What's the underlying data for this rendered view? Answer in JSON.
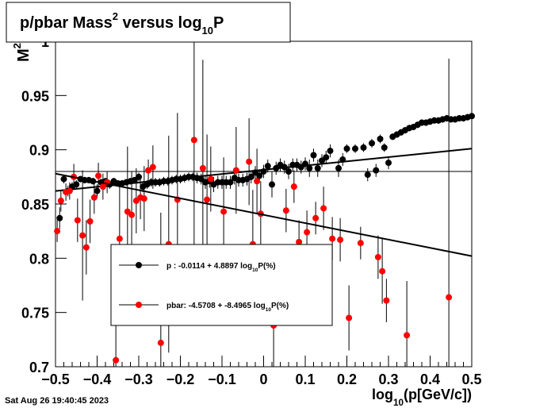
{
  "chart_data": {
    "type": "scatter",
    "title_parts": [
      "p/pbar Mass",
      "2",
      " versus log",
      "10",
      "P"
    ],
    "x_label_parts": [
      "log",
      "10",
      "(p[GeV/c])"
    ],
    "y_label_parts": [
      "M",
      "2"
    ],
    "footer": "Sat Aug 26 19:40:45 2023",
    "xlim": [
      -0.5,
      0.5
    ],
    "ylim": [
      0.7,
      1.0
    ],
    "xticks": [
      {
        "value": -0.5,
        "label": "−0.5"
      },
      {
        "value": -0.4,
        "label": "−0.4"
      },
      {
        "value": -0.3,
        "label": "−0.3"
      },
      {
        "value": -0.2,
        "label": "−0.2"
      },
      {
        "value": -0.1,
        "label": "−0.1"
      },
      0,
      0.1,
      0.2,
      0.3,
      0.4,
      0.5
    ],
    "yticks": [
      0.7,
      0.75,
      0.8,
      0.85,
      0.9,
      0.95,
      1
    ],
    "reference_line": 0.88,
    "series": [
      {
        "name_parts": [
          "p  : -0.0114 + 4.8897 log",
          "10",
          "P(%)"
        ],
        "color": "#000000",
        "fit": {
          "x": [
            -0.5,
            0.5
          ],
          "y": [
            0.862,
            0.901
          ]
        },
        "x": [
          -0.49,
          -0.48,
          -0.47,
          -0.46,
          -0.45,
          -0.44,
          -0.43,
          -0.42,
          -0.41,
          -0.4,
          -0.39,
          -0.38,
          -0.37,
          -0.36,
          -0.35,
          -0.34,
          -0.33,
          -0.32,
          -0.31,
          -0.3,
          -0.29,
          -0.28,
          -0.27,
          -0.26,
          -0.25,
          -0.24,
          -0.23,
          -0.22,
          -0.21,
          -0.2,
          -0.19,
          -0.18,
          -0.17,
          -0.16,
          -0.15,
          -0.14,
          -0.13,
          -0.12,
          -0.11,
          -0.1,
          -0.09,
          -0.08,
          -0.07,
          -0.06,
          -0.05,
          -0.04,
          -0.03,
          -0.02,
          -0.01,
          0.0,
          0.01,
          0.02,
          0.03,
          0.04,
          0.05,
          0.06,
          0.07,
          0.08,
          0.09,
          0.1,
          0.11,
          0.12,
          0.13,
          0.14,
          0.15,
          0.16,
          0.18,
          0.19,
          0.2,
          0.22,
          0.24,
          0.25,
          0.26,
          0.27,
          0.28,
          0.29,
          0.3,
          0.31,
          0.32,
          0.33,
          0.34,
          0.35,
          0.36,
          0.37,
          0.38,
          0.39,
          0.4,
          0.41,
          0.42,
          0.43,
          0.44,
          0.45,
          0.46,
          0.47,
          0.48,
          0.49,
          0.5
        ],
        "values": [
          0.837,
          0.873,
          0.862,
          0.866,
          0.868,
          0.873,
          0.872,
          0.872,
          0.871,
          0.862,
          0.87,
          0.871,
          0.868,
          0.871,
          0.869,
          0.869,
          0.87,
          0.871,
          0.872,
          0.875,
          0.866,
          0.868,
          0.87,
          0.87,
          0.87,
          0.871,
          0.871,
          0.872,
          0.873,
          0.873,
          0.874,
          0.875,
          0.875,
          0.874,
          0.873,
          0.87,
          0.871,
          0.868,
          0.87,
          0.87,
          0.87,
          0.87,
          0.874,
          0.872,
          0.872,
          0.873,
          0.875,
          0.879,
          0.876,
          0.88,
          0.885,
          0.868,
          0.883,
          0.886,
          0.884,
          0.88,
          0.886,
          0.886,
          0.884,
          0.887,
          0.883,
          0.895,
          0.883,
          0.89,
          0.893,
          0.899,
          0.883,
          0.891,
          0.901,
          0.901,
          0.902,
          0.877,
          0.906,
          0.881,
          0.91,
          0.902,
          0.888,
          0.912,
          0.914,
          0.916,
          0.918,
          0.92,
          0.921,
          0.923,
          0.925,
          0.925,
          0.926,
          0.927,
          0.927,
          0.928,
          0.929,
          0.928,
          0.928,
          0.929,
          0.929,
          0.93,
          0.931
        ],
        "errors": [
          0.01,
          0.004,
          0.005,
          0.004,
          0.004,
          0.003,
          0.003,
          0.003,
          0.003,
          0.006,
          0.003,
          0.003,
          0.004,
          0.003,
          0.003,
          0.003,
          0.003,
          0.003,
          0.003,
          0.004,
          0.005,
          0.004,
          0.004,
          0.004,
          0.004,
          0.004,
          0.004,
          0.004,
          0.004,
          0.004,
          0.004,
          0.004,
          0.004,
          0.005,
          0.005,
          0.006,
          0.006,
          0.007,
          0.006,
          0.006,
          0.006,
          0.006,
          0.006,
          0.006,
          0.006,
          0.006,
          0.006,
          0.006,
          0.006,
          0.006,
          0.006,
          0.012,
          0.006,
          0.006,
          0.006,
          0.007,
          0.006,
          0.006,
          0.006,
          0.006,
          0.008,
          0.006,
          0.008,
          0.006,
          0.006,
          0.006,
          0.008,
          0.006,
          0.004,
          0.004,
          0.004,
          0.006,
          0.004,
          0.006,
          0.004,
          0.004,
          0.006,
          0.003,
          0.003,
          0.003,
          0.003,
          0.003,
          0.003,
          0.003,
          0.003,
          0.003,
          0.003,
          0.003,
          0.003,
          0.003,
          0.003,
          0.003,
          0.003,
          0.003,
          0.003,
          0.003,
          0.003
        ]
      },
      {
        "name_parts": [
          "pbar: -4.5708 + -8.4965 log",
          "10",
          "P(%)"
        ],
        "color": "#ff0000",
        "fit": {
          "x": [
            -0.5,
            0.5
          ],
          "y": [
            0.878,
            0.802
          ]
        },
        "x": [
          -0.496,
          -0.487,
          -0.475,
          -0.466,
          -0.456,
          -0.447,
          -0.435,
          -0.426,
          -0.417,
          -0.407,
          -0.397,
          -0.386,
          -0.376,
          -0.355,
          -0.346,
          -0.327,
          -0.317,
          -0.306,
          -0.296,
          -0.287,
          -0.277,
          -0.266,
          -0.247,
          -0.228,
          -0.207,
          -0.167,
          -0.146,
          -0.136,
          -0.127,
          -0.096,
          -0.066,
          -0.035,
          -0.026,
          -0.016,
          -0.007,
          0.024,
          0.054,
          0.073,
          0.085,
          0.104,
          0.125,
          0.144,
          0.165,
          0.184,
          0.205,
          0.233,
          0.275,
          0.285,
          0.295,
          0.344,
          0.445
        ],
        "values": [
          0.825,
          0.853,
          0.861,
          0.862,
          0.875,
          0.835,
          0.821,
          0.81,
          0.834,
          0.856,
          0.876,
          0.866,
          0.87,
          0.706,
          0.818,
          0.843,
          0.84,
          0.853,
          0.856,
          0.855,
          0.881,
          0.884,
          0.722,
          0.813,
          0.854,
          0.909,
          0.883,
          0.854,
          0.873,
          0.843,
          0.881,
          0.889,
          0.813,
          0.871,
          0.841,
          0.738,
          0.844,
          0.866,
          0.815,
          0.824,
          0.837,
          0.846,
          0.818,
          0.817,
          0.745,
          0.814,
          0.801,
          0.788,
          0.761,
          0.729,
          0.764
        ],
        "errors": [
          0.01,
          0.01,
          0.008,
          0.008,
          0.012,
          0.02,
          0.06,
          0.025,
          0.02,
          0.015,
          0.012,
          0.012,
          0.01,
          0.04,
          0.05,
          0.06,
          0.04,
          0.03,
          0.02,
          0.03,
          0.01,
          0.02,
          0.12,
          0.1,
          0.08,
          0.12,
          0.1,
          0.06,
          0.03,
          0.05,
          0.04,
          0.04,
          0.05,
          0.03,
          0.03,
          0.05,
          0.02,
          0.015,
          0.02,
          0.02,
          0.015,
          0.02,
          0.02,
          0.02,
          0.03,
          0.015,
          0.02,
          0.03,
          0.02,
          0.05,
          0.22
        ]
      }
    ]
  }
}
